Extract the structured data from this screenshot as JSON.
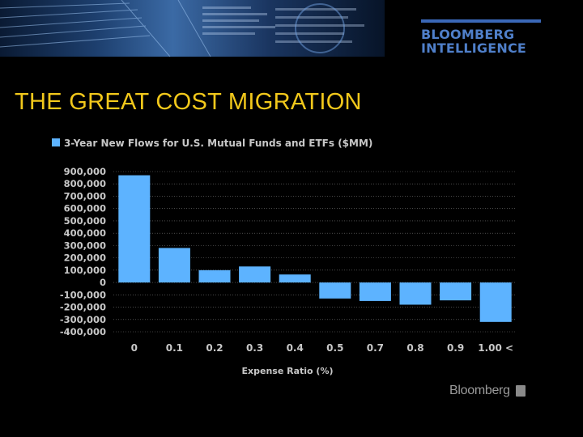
{
  "slide": {
    "title": "THE GREAT COST MIGRATION",
    "brand_line1": "BLOOMBERG",
    "brand_line2": "INTELLIGENCE",
    "footer_logo": "Bloomberg",
    "footer_icon": "bloomberg-terminal-icon",
    "banner_image": "financial-data-screens-photo"
  },
  "colors": {
    "bar": "#5db3ff",
    "grid": "#777777",
    "text": "#c8c8c8",
    "title": "#f2c81b",
    "brand": "#4f7fc9"
  },
  "chart_data": {
    "type": "bar",
    "title": "",
    "xlabel": "Expense Ratio (%)",
    "ylabel": "",
    "categories": [
      "0",
      "0.1",
      "0.2",
      "0.3",
      "0.4",
      "0.5",
      "0.7",
      "0.8",
      "0.9",
      "1.00 <"
    ],
    "series": [
      {
        "name": "3-Year New Flows for U.S. Mutual Funds and ETFs ($MM)",
        "values": [
          870000,
          280000,
          100000,
          130000,
          65000,
          -130000,
          -150000,
          -180000,
          -145000,
          -320000
        ]
      }
    ],
    "y_ticks": [
      "900,000",
      "800,000",
      "700,000",
      "600,000",
      "500,000",
      "400,000",
      "300,000",
      "200,000",
      "100,000",
      "0",
      "-100,000",
      "-200,000",
      "-300,000",
      "-400,000"
    ],
    "ylim": [
      -400000,
      900000
    ],
    "grid": true,
    "legend": "top-left"
  }
}
